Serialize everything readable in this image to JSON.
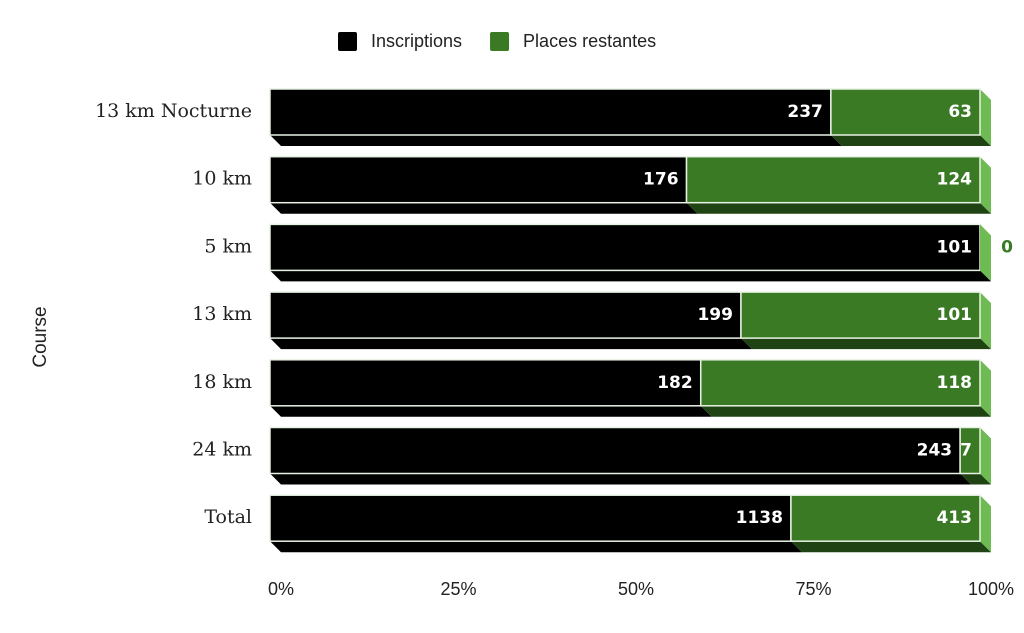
{
  "chart_data": {
    "type": "bar",
    "orientation": "horizontal",
    "stacking": "percent",
    "y_label": "Course",
    "categories": [
      "13 km Nocturne",
      "10 km",
      "5 km",
      "13 km",
      "18 km",
      "24 km",
      "Total"
    ],
    "series": [
      {
        "name": "Inscriptions",
        "color": "#000000",
        "values": [
          237,
          176,
          101,
          199,
          182,
          243,
          1138
        ]
      },
      {
        "name": "Places restantes",
        "color": "#3a7a24",
        "values": [
          63,
          124,
          0,
          101,
          118,
          7,
          413
        ]
      }
    ],
    "xlim": [
      0,
      100
    ],
    "xticks": [
      {
        "value": 0,
        "label": "0%"
      },
      {
        "value": 25,
        "label": "25%"
      },
      {
        "value": 50,
        "label": "50%"
      },
      {
        "value": 75,
        "label": "75%"
      },
      {
        "value": 100,
        "label": "100%"
      }
    ],
    "legend": "top"
  }
}
